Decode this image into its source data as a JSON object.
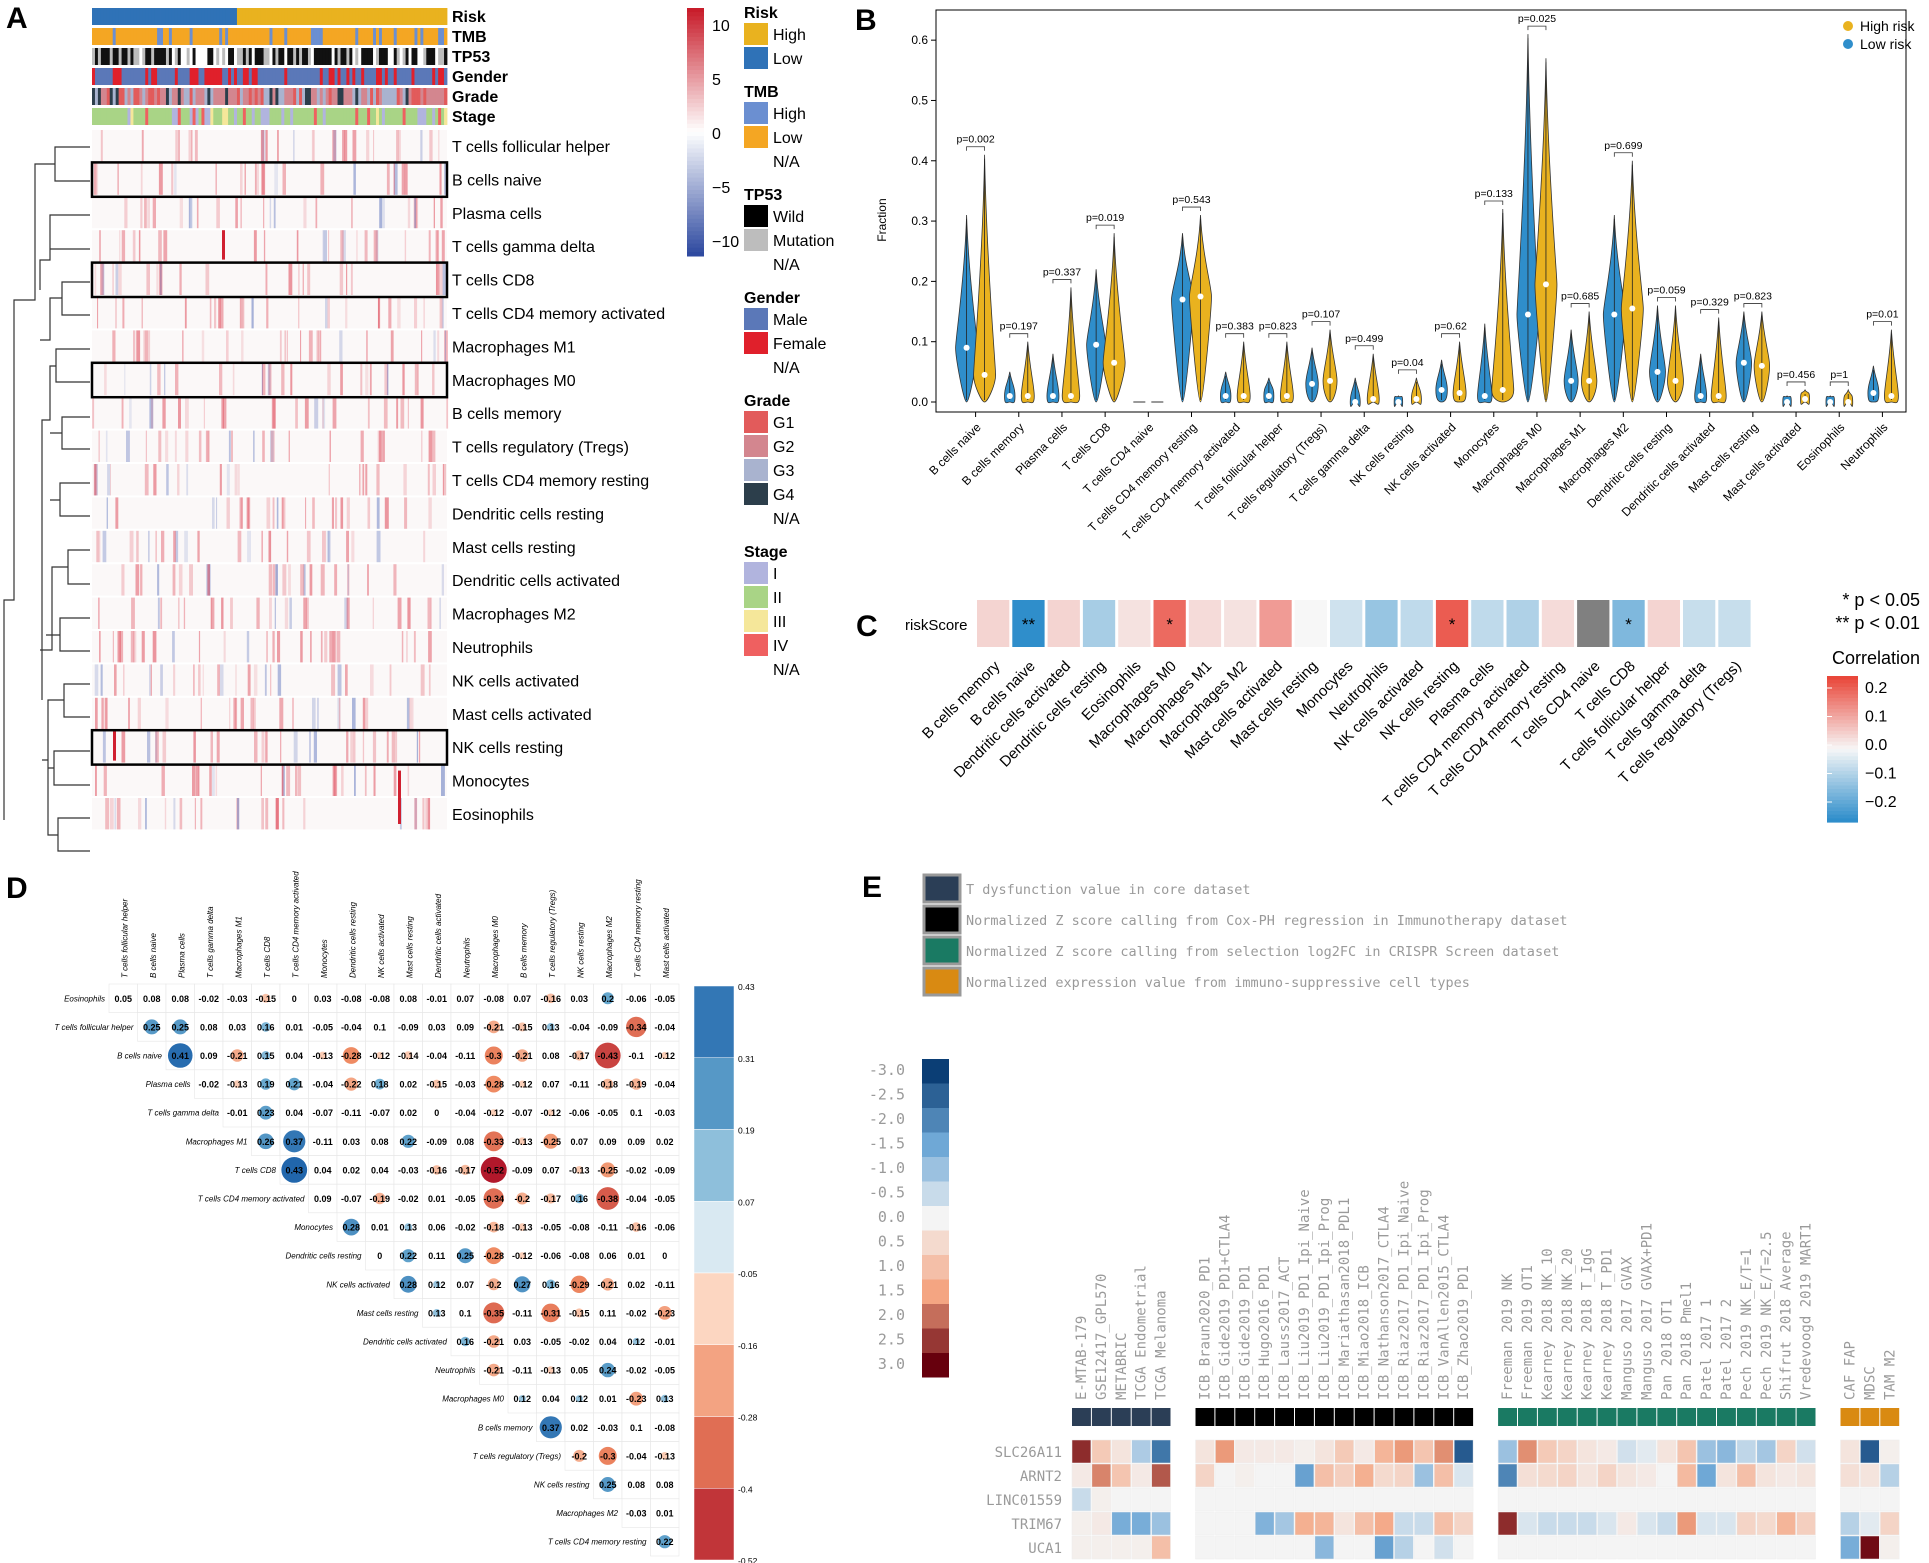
{
  "panels": {
    "A": {
      "letter": "A",
      "tracks": [
        "Risk",
        "TMB",
        "TP53",
        "Gender",
        "Grade",
        "Stage"
      ],
      "cells": [
        "T cells follicular helper",
        "B cells naive",
        "Plasma cells",
        "T cells gamma delta",
        "T cells CD8",
        "T cells CD4 memory activated",
        "Macrophages M1",
        "Macrophages M0",
        "B cells memory",
        "T cells regulatory (Tregs)",
        "T cells CD4 memory resting",
        "Dendritic cells resting",
        "Mast cells resting",
        "Dendritic cells activated",
        "Macrophages M2",
        "Neutrophils",
        "NK cells activated",
        "Mast cells activated",
        "NK cells resting",
        "Monocytes",
        "Eosinophils"
      ],
      "boxed": [
        1,
        4,
        7,
        18
      ],
      "colorbar_ticks": [
        "10",
        "5",
        "0",
        "−5",
        "−10"
      ],
      "legend": [
        {
          "title": "Risk",
          "items": [
            {
              "label": "High",
              "color": "#e9b21f"
            },
            {
              "label": "Low",
              "color": "#2f72b7"
            }
          ]
        },
        {
          "title": "TMB",
          "items": [
            {
              "label": "High",
              "color": "#6b8fd1"
            },
            {
              "label": "Low",
              "color": "#f4a623"
            },
            {
              "label": "N/A",
              "color": null
            }
          ]
        },
        {
          "title": "TP53",
          "items": [
            {
              "label": "Wild",
              "color": "#000000"
            },
            {
              "label": "Mutation",
              "color": "#bdbdbd"
            },
            {
              "label": "N/A",
              "color": null
            }
          ]
        },
        {
          "title": "Gender",
          "items": [
            {
              "label": "Male",
              "color": "#5b78b8"
            },
            {
              "label": "Female",
              "color": "#e0202b"
            },
            {
              "label": "N/A",
              "color": null
            }
          ]
        },
        {
          "title": "Grade",
          "items": [
            {
              "label": "G1",
              "color": "#e25b5b"
            },
            {
              "label": "G2",
              "color": "#d3868f"
            },
            {
              "label": "G3",
              "color": "#a9b3cf"
            },
            {
              "label": "G4",
              "color": "#2c3e4b"
            },
            {
              "label": "N/A",
              "color": null
            }
          ]
        },
        {
          "title": "Stage",
          "items": [
            {
              "label": "I",
              "color": "#b1b4de"
            },
            {
              "label": "II",
              "color": "#a9d486"
            },
            {
              "label": "III",
              "color": "#f5e79a"
            },
            {
              "label": "IV",
              "color": "#ef6060"
            },
            {
              "label": "N/A",
              "color": null
            }
          ]
        }
      ]
    },
    "B": {
      "letter": "B",
      "ylabel": "Fraction",
      "yticks": [
        "0.0",
        "0.1",
        "0.2",
        "0.3",
        "0.4",
        "0.5",
        "0.6"
      ],
      "legend": [
        {
          "label": "High risk",
          "color": "#e9b21f"
        },
        {
          "label": "Low risk",
          "color": "#2f8ecb"
        }
      ]
    },
    "C": {
      "letter": "C",
      "row_label": "riskScore",
      "legend_title": "Correlation",
      "legend_ticks": [
        "0.2",
        "0.1",
        "0.0",
        "−0.1",
        "−0.2"
      ],
      "sig_notes": [
        "* p < 0.05",
        "** p < 0.01"
      ]
    },
    "D": {
      "letter": "D"
    },
    "E": {
      "letter": "E",
      "legend": [
        {
          "label": "T dysfunction value in core dataset",
          "color": "#2b3e56"
        },
        {
          "label": "Normalized Z score calling from Cox-PH regression in Immunotherapy dataset",
          "color": "#000000"
        },
        {
          "label": "Normalized Z score calling from selection log2FC in CRISPR Screen dataset",
          "color": "#1a7a63"
        },
        {
          "label": "Normalized expression value from immuno-suppressive cell types",
          "color": "#d98a12"
        }
      ],
      "scale_labels": [
        "-3.0",
        "-2.5",
        "-2.0",
        "-1.5",
        "-1.0",
        "-0.5",
        "0.0",
        "0.5",
        "1.0",
        "1.5",
        "2.0",
        "2.5",
        "3.0"
      ],
      "genes": [
        "SLC26A11",
        "ARNT2",
        "LINC01559",
        "TRIM67",
        "UCA1"
      ]
    }
  },
  "chart_data": [
    {
      "type": "violin",
      "panel": "B",
      "ylabel": "Fraction",
      "ylim": [
        0,
        0.65
      ],
      "categories": [
        "B cells naive",
        "B cells memory",
        "Plasma cells",
        "T cells CD8",
        "T cells CD4 naive",
        "T cells CD4 memory resting",
        "T cells CD4 memory activated",
        "T cells follicular helper",
        "T cells regulatory (Tregs)",
        "T cells gamma delta",
        "NK cells resting",
        "NK cells activated",
        "Monocytes",
        "Macrophages M0",
        "Macrophages M1",
        "Macrophages M2",
        "Dendritic cells resting",
        "Dendritic cells activated",
        "Mast cells resting",
        "Mast cells activated",
        "Eosinophils",
        "Neutrophils"
      ],
      "pvalues": [
        "p=0.002",
        "p=0.197",
        "p=0.337",
        "p=0.019",
        "",
        "p=0.543",
        "p=0.383",
        "p=0.823",
        "p=0.107",
        "p=0.499",
        "p=0.04",
        "p=0.62",
        "p=0.133",
        "p=0.025",
        "p=0.685",
        "p=0.699",
        "p=0.059",
        "p=0.329",
        "p=0.823",
        "p=0.456",
        "p=1",
        "p=0.01"
      ],
      "series": [
        {
          "name": "Low risk",
          "medians": [
            0.09,
            0.01,
            0.01,
            0.095,
            0.0,
            0.17,
            0.01,
            0.01,
            0.03,
            0.0,
            0.0,
            0.02,
            0.01,
            0.145,
            0.035,
            0.145,
            0.05,
            0.01,
            0.065,
            0.0,
            0.0,
            0.015
          ],
          "maxima": [
            0.31,
            0.05,
            0.08,
            0.22,
            0.0,
            0.28,
            0.05,
            0.04,
            0.09,
            0.04,
            0.01,
            0.07,
            0.13,
            0.61,
            0.12,
            0.31,
            0.16,
            0.08,
            0.15,
            0.01,
            0.01,
            0.06
          ]
        },
        {
          "name": "High risk",
          "medians": [
            0.045,
            0.01,
            0.01,
            0.065,
            0.0,
            0.175,
            0.01,
            0.01,
            0.035,
            0.005,
            0.005,
            0.015,
            0.02,
            0.195,
            0.035,
            0.155,
            0.035,
            0.01,
            0.06,
            0.005,
            0.0,
            0.01
          ],
          "maxima": [
            0.41,
            0.1,
            0.19,
            0.28,
            0.0,
            0.31,
            0.1,
            0.1,
            0.12,
            0.08,
            0.04,
            0.1,
            0.32,
            0.57,
            0.15,
            0.4,
            0.16,
            0.14,
            0.15,
            0.02,
            0.02,
            0.12
          ]
        }
      ]
    },
    {
      "type": "heatmap",
      "panel": "C",
      "row": "riskScore",
      "columns": [
        "B cells memory",
        "B cells naive",
        "Dendritic cells activated",
        "Dendritic cells resting",
        "Eosinophils",
        "Macrophages M0",
        "Macrophages M1",
        "Macrophages M2",
        "Mast cells activated",
        "Mast cells resting",
        "Monocytes",
        "Neutrophils",
        "NK cells activated",
        "NK cells resting",
        "Plasma cells",
        "T cells CD4 memory activated",
        "T cells CD4 memory resting",
        "T cells CD4 naive",
        "T cells CD8",
        "T cells follicular helper",
        "T cells gamma delta",
        "T cells regulatory (Tregs)"
      ],
      "values": [
        0.05,
        -0.25,
        0.05,
        -0.1,
        0.03,
        0.2,
        0.04,
        0.03,
        0.13,
        0.0,
        -0.05,
        -0.12,
        -0.07,
        0.22,
        -0.07,
        -0.09,
        0.04,
        null,
        -0.15,
        0.05,
        -0.06,
        -0.06
      ],
      "significance": [
        "",
        "**",
        "",
        "",
        "",
        "*",
        "",
        "",
        "",
        "",
        "",
        "",
        "",
        "*",
        "",
        "",
        "",
        "",
        "*",
        "",
        "",
        ""
      ]
    },
    {
      "type": "correlation_matrix",
      "panel": "D",
      "labels": [
        "T cells follicular helper",
        "B cells naive",
        "Plasma cells",
        "T cells gamma delta",
        "Macrophages M1",
        "T cells CD8",
        "T cells CD4 memory activated",
        "Monocytes",
        "Dendritic cells resting",
        "NK cells activated",
        "Mast cells resting",
        "Dendritic cells activated",
        "Neutrophils",
        "Macrophages M0",
        "B cells memory",
        "T cells regulatory (Tregs)",
        "NK cells resting",
        "Macrophages M2",
        "T cells CD4 memory resting",
        "Mast cells activated"
      ],
      "row_labels": [
        "Eosinophils",
        "T cells follicular helper",
        "B cells naive",
        "Plasma cells",
        "T cells gamma delta",
        "Macrophages M1",
        "T cells CD8",
        "T cells CD4 memory activated",
        "Monocytes",
        "Dendritic cells resting",
        "NK cells activated",
        "Mast cells resting",
        "Dendritic cells activated",
        "Neutrophils",
        "Macrophages M0",
        "B cells memory",
        "T cells regulatory (Tregs)",
        "NK cells resting",
        "Macrophages M2",
        "T cells CD4 memory resting"
      ],
      "rows": [
        [
          0.05,
          0.08,
          0.08,
          -0.02,
          -0.03,
          -0.15,
          0,
          0.03,
          -0.08,
          -0.08,
          0.08,
          -0.01,
          0.07,
          -0.08,
          0.07,
          -0.16,
          0.03,
          0.2,
          -0.06,
          -0.05
        ],
        [
          0.25,
          0.25,
          0.08,
          0.03,
          0.16,
          0.01,
          -0.05,
          -0.04,
          0.1,
          -0.09,
          0.03,
          0.09,
          -0.21,
          -0.15,
          0.13,
          -0.04,
          -0.09,
          -0.34,
          -0.04
        ],
        [
          0.41,
          0.09,
          -0.21,
          0.15,
          0.04,
          -0.13,
          -0.28,
          -0.12,
          -0.14,
          -0.04,
          -0.11,
          -0.3,
          -0.21,
          0.08,
          -0.17,
          -0.43,
          -0.1,
          -0.12
        ],
        [
          -0.02,
          -0.13,
          0.19,
          0.21,
          -0.04,
          -0.22,
          0.18,
          0.02,
          -0.15,
          -0.03,
          -0.28,
          -0.12,
          0.07,
          -0.11,
          -0.18,
          -0.19,
          -0.04
        ],
        [
          -0.01,
          0.23,
          0.04,
          -0.07,
          -0.11,
          -0.07,
          0.02,
          0,
          -0.04,
          -0.12,
          -0.07,
          -0.12,
          -0.06,
          -0.05,
          0.1,
          -0.03
        ],
        [
          0.26,
          0.37,
          -0.11,
          0.03,
          0.08,
          0.22,
          -0.09,
          0.08,
          -0.33,
          -0.13,
          -0.25,
          0.07,
          0.09,
          0.09,
          0.02
        ],
        [
          0.43,
          0.04,
          0.02,
          0.04,
          -0.03,
          -0.16,
          -0.17,
          -0.52,
          -0.09,
          0.07,
          -0.13,
          -0.25,
          -0.02,
          -0.09
        ],
        [
          0.09,
          -0.07,
          -0.19,
          -0.02,
          0.01,
          -0.05,
          -0.34,
          -0.2,
          -0.17,
          0.16,
          -0.38,
          -0.04,
          -0.05
        ],
        [
          0.28,
          0.01,
          0.13,
          0.06,
          -0.02,
          -0.18,
          -0.13,
          -0.05,
          -0.08,
          -0.11,
          -0.16,
          -0.06
        ],
        [
          0,
          0.22,
          0.11,
          0.25,
          -0.28,
          -0.12,
          -0.06,
          -0.08,
          0.06,
          0.01,
          0
        ],
        [
          0.28,
          0.12,
          0.07,
          -0.2,
          0.27,
          0.16,
          -0.29,
          -0.21,
          0.02,
          -0.11
        ],
        [
          0.13,
          0.1,
          -0.35,
          -0.11,
          -0.31,
          -0.15,
          0.11,
          -0.02,
          -0.23
        ],
        [
          0.16,
          -0.21,
          0.03,
          -0.05,
          -0.02,
          0.04,
          0.12,
          -0.01
        ],
        [
          -0.21,
          -0.11,
          -0.13,
          0.05,
          0.24,
          -0.02,
          -0.05
        ],
        [
          0.12,
          0.04,
          0.12,
          0.01,
          -0.23,
          0.13
        ],
        [
          0.37,
          0.02,
          -0.03,
          0.1,
          -0.08
        ],
        [
          -0.2,
          -0.3,
          -0.04,
          -0.13
        ],
        [
          0.25,
          0.08,
          0.08
        ],
        [
          -0.03,
          0.01
        ],
        [
          0.22
        ]
      ],
      "colorbar_ticks": [
        "0.43",
        "0.31",
        "0.19",
        "0.07",
        "-0.05",
        "-0.16",
        "-0.28",
        "-0.4",
        "-0.52"
      ]
    },
    {
      "type": "heatmap",
      "panel": "E",
      "groups": [
        {
          "name": "T dysfunction",
          "color": "#2b3e56",
          "columns": [
            "E-MTAB-179",
            "GSE12417_GPL570",
            "METABRIC",
            "TCGA Endometrial",
            "TCGA Melanoma"
          ]
        },
        {
          "name": "Immunotherapy",
          "color": "#000000",
          "columns": [
            "ICB_Braun2020_PD1",
            "ICB_Gide2019_PD1+CTLA4",
            "ICB_Gide2019_PD1",
            "ICB_Hugo2016_PD1",
            "ICB_Lauss2017_ACT",
            "ICB_Liu2019_PD1_Ipi_Naive",
            "ICB_Liu2019_PD1_Ipi_Prog",
            "ICB_Mariathasan2018_PDL1",
            "ICB_Miao2018_ICB",
            "ICB_Nathanson2017_CTLA4",
            "ICB_Riaz2017_PD1_Ipi_Naive",
            "ICB_Riaz2017_PD1_Ipi_Prog",
            "ICB_VanAllen2015_CTLA4",
            "ICB_Zhao2019_PD1"
          ]
        },
        {
          "name": "CRISPR",
          "color": "#1a7a63",
          "columns": [
            "Freeman 2019 NK",
            "Freeman 2019 OT1",
            "Kearney 2018 NK_10",
            "Kearney 2018 NK_20",
            "Kearney 2018 T_IgG",
            "Kearney 2018 T_PD1",
            "Manguso 2017 GVAX",
            "Manguso 2017 GVAX+PD1",
            "Pan 2018 OT1",
            "Pan 2018 Pmel1",
            "Patel 2017 1",
            "Patel 2017 2",
            "Pech 2019 NK_E/T=1",
            "Pech 2019 NK_E/T=2.5",
            "Shifrut 2018 Average",
            "Vredevoogd 2019 MART1"
          ]
        },
        {
          "name": "Immunosuppressive",
          "color": "#d98a12",
          "columns": [
            "CAF FAP",
            "MDSC",
            "TAM M2"
          ]
        }
      ],
      "genes": [
        "SLC26A11",
        "ARNT2",
        "LINC01559",
        "TRIM67",
        "UCA1"
      ],
      "values": [
        [
          2.6,
          0.8,
          0.3,
          -0.8,
          -2.2,
          0.3,
          1.6,
          0.2,
          0.2,
          0.2,
          0.1,
          0.3,
          0.8,
          0.2,
          1.2,
          1.6,
          0.9,
          1.7,
          -2.6,
          -1.0,
          1.7,
          0.8,
          0.6,
          0.3,
          0.2,
          -0.4,
          -0.2,
          0.3,
          0.9,
          -1.0,
          -1.2,
          -0.6,
          -0.9,
          0.6,
          -0.4,
          0.3,
          -2.6,
          0.1
        ],
        [
          0.2,
          1.8,
          0.9,
          0.2,
          2.2,
          0.6,
          0,
          0.1,
          0,
          0,
          -1.6,
          1.0,
          0.7,
          1.3,
          0.5,
          0.6,
          -1.0,
          1.0,
          -0.3,
          -2.0,
          0.4,
          0.5,
          0.6,
          0.3,
          0.6,
          0.3,
          0.2,
          0,
          1.1,
          -1.5,
          0.3,
          1.0,
          0.3,
          0.2,
          0.3,
          0.4,
          0.3,
          -0.7
        ],
        [
          -0.5,
          0.1,
          0,
          0,
          0,
          0,
          0,
          0,
          0,
          0,
          0,
          0,
          0,
          0,
          0,
          0,
          0,
          0,
          0,
          0,
          0,
          0,
          0,
          0,
          0,
          0,
          0,
          0,
          0,
          0,
          0,
          0,
          0,
          0,
          0,
          0,
          0,
          0
        ],
        [
          0.1,
          0.2,
          -1.4,
          -1.4,
          -1.0,
          0,
          0,
          0,
          -1.3,
          -0.9,
          1.3,
          1.2,
          0.3,
          1.0,
          1.4,
          -0.5,
          -0.5,
          1.0,
          0.6,
          2.6,
          -0.3,
          -0.5,
          -0.5,
          -0.5,
          -0.3,
          0.2,
          -0.3,
          -0.5,
          1.6,
          -0.3,
          -0.3,
          0.6,
          0.5,
          1.2,
          0.7,
          -0.7,
          -0.2,
          0.6
        ],
        [
          0.1,
          0.1,
          0.1,
          0.1,
          1.0,
          0,
          0,
          0,
          0,
          0,
          0,
          -1.2,
          0,
          0,
          -1.6,
          -0.7,
          0,
          -0.4,
          0,
          0,
          0,
          0,
          0,
          0,
          0,
          0,
          0,
          0,
          0,
          0,
          0,
          0,
          0,
          0,
          0,
          -1.4,
          2.9,
          0.1
        ]
      ],
      "scale_min": -3.0,
      "scale_max": 3.0
    }
  ]
}
